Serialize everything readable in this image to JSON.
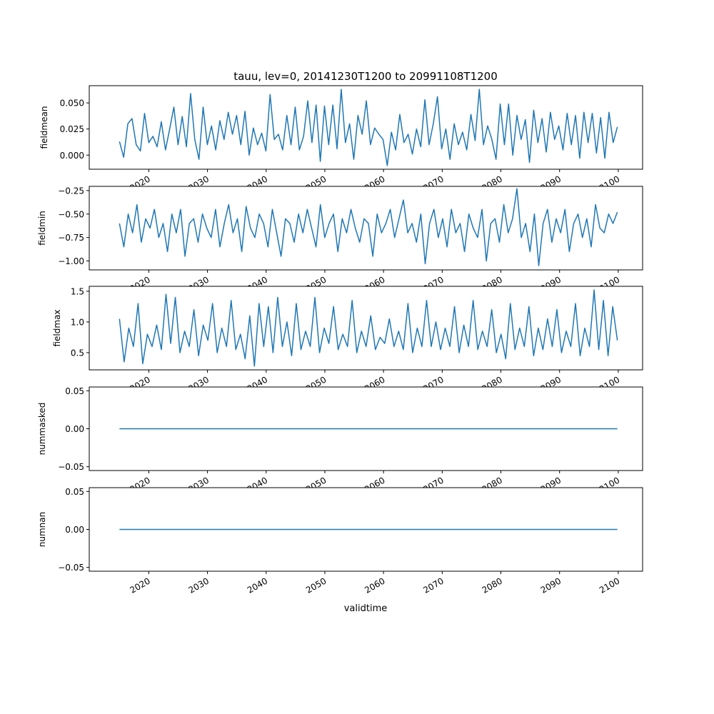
{
  "title": "tauu, lev=0, 20141230T1200 to 20991108T1200",
  "xlabel": "validtime",
  "colors": {
    "line": "#1f77b4",
    "axis": "#000000"
  },
  "chart_data": [
    {
      "type": "line",
      "ylabel": "fieldmean",
      "ylim": [
        -0.0135,
        0.0665
      ],
      "yticks": [
        0.0,
        0.025,
        0.05
      ],
      "ytick_labels": [
        "0.000",
        "0.025",
        "0.050"
      ],
      "x_start": 2015.0,
      "x_end": 2099.85,
      "values": [
        0.013,
        -0.002,
        0.03,
        0.035,
        0.01,
        0.004,
        0.04,
        0.012,
        0.018,
        0.008,
        0.032,
        0.005,
        0.025,
        0.046,
        0.01,
        0.037,
        0.008,
        0.059,
        0.015,
        -0.004,
        0.046,
        0.01,
        0.028,
        0.005,
        0.033,
        0.015,
        0.041,
        0.02,
        0.038,
        0.01,
        0.042,
        0.0,
        0.026,
        0.01,
        0.021,
        0.004,
        0.058,
        0.015,
        0.02,
        0.005,
        0.038,
        0.01,
        0.046,
        0.005,
        0.018,
        0.052,
        0.012,
        0.048,
        -0.006,
        0.047,
        0.01,
        0.048,
        0.006,
        0.063,
        0.012,
        0.03,
        -0.004,
        0.038,
        0.02,
        0.052,
        0.01,
        0.026,
        0.02,
        0.015,
        -0.01,
        0.022,
        0.005,
        0.039,
        0.012,
        0.02,
        0.001,
        0.025,
        0.008,
        0.053,
        0.01,
        0.03,
        0.056,
        0.006,
        0.025,
        -0.004,
        0.03,
        0.01,
        0.022,
        0.005,
        0.039,
        0.014,
        0.063,
        0.01,
        0.028,
        0.015,
        -0.004,
        0.049,
        0.01,
        0.049,
        0.0,
        0.038,
        0.015,
        0.034,
        -0.007,
        0.043,
        0.012,
        0.035,
        0.003,
        0.041,
        0.015,
        0.028,
        0.005,
        0.04,
        0.01,
        0.038,
        -0.003,
        0.041,
        0.012,
        0.04,
        0.002,
        0.036,
        -0.003,
        0.041,
        0.012,
        0.027
      ]
    },
    {
      "type": "line",
      "ylabel": "fieldmin",
      "ylim": [
        -1.095,
        -0.205
      ],
      "yticks": [
        -1.0,
        -0.75,
        -0.5,
        -0.25
      ],
      "ytick_labels": [
        "−1.00",
        "−0.75",
        "−0.50",
        "−0.25"
      ],
      "x_start": 2015.0,
      "x_end": 2099.85,
      "values": [
        -0.6,
        -0.85,
        -0.5,
        -0.7,
        -0.4,
        -0.8,
        -0.55,
        -0.65,
        -0.45,
        -0.75,
        -0.6,
        -0.9,
        -0.5,
        -0.7,
        -0.45,
        -0.95,
        -0.6,
        -0.55,
        -0.8,
        -0.5,
        -0.65,
        -0.75,
        -0.45,
        -0.85,
        -0.6,
        -0.4,
        -0.7,
        -0.55,
        -0.9,
        -0.42,
        -0.65,
        -0.75,
        -0.5,
        -0.6,
        -0.85,
        -0.45,
        -0.7,
        -0.95,
        -0.55,
        -0.6,
        -0.8,
        -0.5,
        -0.7,
        -0.45,
        -0.65,
        -0.85,
        -0.4,
        -0.75,
        -0.6,
        -0.5,
        -0.9,
        -0.55,
        -0.7,
        -0.45,
        -0.65,
        -0.8,
        -0.55,
        -0.6,
        -0.95,
        -0.5,
        -0.7,
        -0.6,
        -0.45,
        -0.75,
        -0.55,
        -0.35,
        -0.7,
        -0.6,
        -0.8,
        -0.5,
        -1.03,
        -0.6,
        -0.45,
        -0.75,
        -0.55,
        -0.85,
        -0.45,
        -0.7,
        -0.6,
        -0.9,
        -0.5,
        -0.65,
        -0.75,
        -0.45,
        -1.0,
        -0.6,
        -0.55,
        -0.8,
        -0.4,
        -0.7,
        -0.55,
        -0.23,
        -0.75,
        -0.6,
        -0.9,
        -0.5,
        -1.05,
        -0.6,
        -0.45,
        -0.8,
        -0.55,
        -0.7,
        -0.45,
        -0.9,
        -0.6,
        -0.5,
        -0.75,
        -0.55,
        -0.85,
        -0.4,
        -0.65,
        -0.7,
        -0.5,
        -0.6,
        -0.48
      ]
    },
    {
      "type": "line",
      "ylabel": "fieldmax",
      "ylim": [
        0.22,
        1.58
      ],
      "yticks": [
        0.5,
        1.0,
        1.5
      ],
      "ytick_labels": [
        "0.5",
        "1.0",
        "1.5"
      ],
      "x_start": 2015.0,
      "x_end": 2099.85,
      "values": [
        1.05,
        0.35,
        0.9,
        0.6,
        1.3,
        0.32,
        0.8,
        0.6,
        0.95,
        0.55,
        1.45,
        0.65,
        1.4,
        0.5,
        0.85,
        0.6,
        1.2,
        0.45,
        0.95,
        0.7,
        1.3,
        0.5,
        0.9,
        0.6,
        1.35,
        0.55,
        0.8,
        0.4,
        1.1,
        0.28,
        1.3,
        0.6,
        1.25,
        0.5,
        1.4,
        0.6,
        1.0,
        0.45,
        1.3,
        0.55,
        0.85,
        0.6,
        1.4,
        0.5,
        0.9,
        0.65,
        1.25,
        0.55,
        0.8,
        0.6,
        1.35,
        0.5,
        0.85,
        0.6,
        1.1,
        0.55,
        0.75,
        0.65,
        1.05,
        0.6,
        0.85,
        0.55,
        1.3,
        0.5,
        0.9,
        0.6,
        1.35,
        0.6,
        1.0,
        0.55,
        0.9,
        0.6,
        1.25,
        0.5,
        0.95,
        0.6,
        1.35,
        0.55,
        0.85,
        0.6,
        1.2,
        0.5,
        0.8,
        0.4,
        1.3,
        0.55,
        0.9,
        0.6,
        1.25,
        0.45,
        0.9,
        0.55,
        1.05,
        0.6,
        1.2,
        0.5,
        0.85,
        0.6,
        1.3,
        0.45,
        0.9,
        0.6,
        1.52,
        0.55,
        1.35,
        0.45,
        1.25,
        0.7
      ]
    },
    {
      "type": "line",
      "ylabel": "nummasked",
      "ylim": [
        -0.055,
        0.055
      ],
      "yticks": [
        -0.05,
        0.0,
        0.05
      ],
      "ytick_labels": [
        "−0.05",
        "0.00",
        "0.05"
      ],
      "x_start": 2015.0,
      "x_end": 2099.85,
      "values": [
        0,
        0
      ]
    },
    {
      "type": "line",
      "ylabel": "numnan",
      "ylim": [
        -0.055,
        0.055
      ],
      "yticks": [
        -0.05,
        0.0,
        0.05
      ],
      "ytick_labels": [
        "−0.05",
        "0.00",
        "0.05"
      ],
      "x_start": 2015.0,
      "x_end": 2099.85,
      "values": [
        0,
        0
      ]
    }
  ],
  "xticks": [
    2020,
    2030,
    2040,
    2050,
    2060,
    2070,
    2080,
    2090,
    2100
  ],
  "xtick_labels": [
    "2020",
    "2030",
    "2040",
    "2050",
    "2060",
    "2070",
    "2080",
    "2090",
    "2100"
  ],
  "xlim": [
    2009.85,
    2104.15
  ]
}
